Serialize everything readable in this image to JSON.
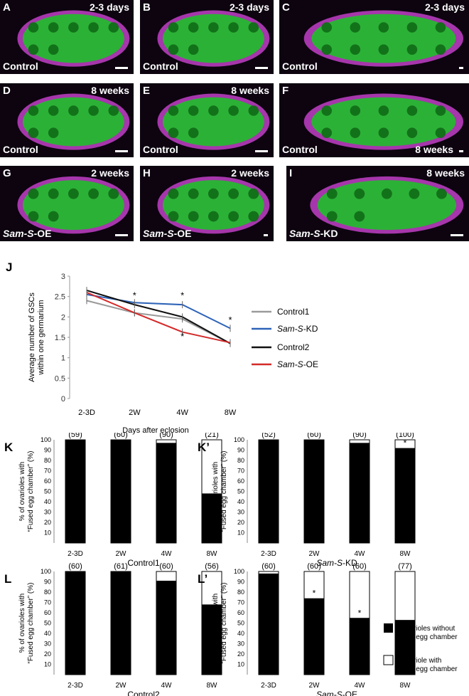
{
  "panels": [
    {
      "id": "A",
      "time": "2-3 days",
      "cond": "Control",
      "cond_italic": ""
    },
    {
      "id": "B",
      "time": "2-3 days",
      "cond": "Control",
      "cond_italic": ""
    },
    {
      "id": "C",
      "time": "2-3 days",
      "cond": "Control",
      "cond_italic": ""
    },
    {
      "id": "D",
      "time": "8 weeks",
      "cond": "Control",
      "cond_italic": ""
    },
    {
      "id": "E",
      "time": "8 weeks",
      "cond": "Control",
      "cond_italic": ""
    },
    {
      "id": "F",
      "time": "8 weeks",
      "cond": "Control",
      "cond_italic": ""
    },
    {
      "id": "G",
      "time": "2 weeks",
      "cond": "-OE",
      "cond_italic": "Sam-S"
    },
    {
      "id": "H",
      "time": "2 weeks",
      "cond": "-OE",
      "cond_italic": "Sam-S"
    },
    {
      "id": "I",
      "time": "8 weeks",
      "cond": "-KD",
      "cond_italic": "Sam-S"
    }
  ],
  "colors": {
    "gfp": "#1fbf2a",
    "membrane": "#c23fc7",
    "control1": "#9a9a9a",
    "samkd": "#2d63b8",
    "control2": "#111111",
    "samoe": "#d42a2a"
  },
  "chart_data": [
    {
      "panel": "J",
      "type": "line",
      "x": [
        "2-3D",
        "2W",
        "4W",
        "8W"
      ],
      "xlabel": "Days after eclosion",
      "ylabel": "Average number of GSCs within one germarium",
      "ylim": [
        0,
        3
      ],
      "yticks": [
        "0",
        "0.5",
        "1",
        "1.5",
        "2",
        "2.5",
        "3"
      ],
      "series": [
        {
          "name": "Control1",
          "values": [
            2.4,
            2.1,
            1.95,
            1.35
          ]
        },
        {
          "name": "Sam-S-KD",
          "values": [
            2.55,
            2.35,
            2.3,
            1.72
          ]
        },
        {
          "name": "Control2",
          "values": [
            2.65,
            2.3,
            2.0,
            1.35
          ]
        },
        {
          "name": "Sam-S-OE",
          "values": [
            2.6,
            2.1,
            1.63,
            1.37
          ]
        }
      ],
      "annotations": [
        "*",
        "*",
        "*",
        "*"
      ]
    },
    {
      "panel": "K",
      "type": "bar",
      "categories": [
        "2-3D",
        "2W",
        "4W",
        "8W"
      ],
      "counts": [
        "(59)",
        "(60)",
        "(90)",
        "(21)"
      ],
      "without": [
        100,
        100,
        97,
        48
      ],
      "title": "Control1",
      "ylim": [
        0,
        100
      ],
      "ylabel": "% of ovarioles with \"Fused egg chamber\" (%)",
      "stars": []
    },
    {
      "panel": "K’",
      "type": "bar",
      "categories": [
        "2-3D",
        "2W",
        "4W",
        "8W"
      ],
      "counts": [
        "(52)",
        "(60)",
        "(90)",
        "(100)"
      ],
      "without": [
        100,
        100,
        97,
        92
      ],
      "title": "Sam-S-KD",
      "ylim": [
        0,
        100
      ],
      "ylabel": "% of ovarioles with \"Fused egg chamber\" (%)",
      "stars": [
        "8W"
      ]
    },
    {
      "panel": "L",
      "type": "bar",
      "categories": [
        "2-3D",
        "2W",
        "4W",
        "8W"
      ],
      "counts": [
        "(60)",
        "(61)",
        "(60)",
        "(56)"
      ],
      "without": [
        100,
        100,
        91,
        68
      ],
      "title": "Control2",
      "ylim": [
        0,
        100
      ],
      "ylabel": "% of ovarioles with \"Fused egg chamber\" (%)",
      "stars": []
    },
    {
      "panel": "L’",
      "type": "bar",
      "categories": [
        "2-3D",
        "2W",
        "4W",
        "8W"
      ],
      "counts": [
        "(60)",
        "(60)",
        "(60)",
        "(77)"
      ],
      "without": [
        98,
        74,
        55,
        53
      ],
      "title": "Sam-S-OE",
      "ylim": [
        0,
        100
      ],
      "ylabel": "% of ovarioles with \"Fused egg chamber\" (%)",
      "stars": [
        "2W",
        "4W"
      ]
    }
  ],
  "legend_lines": [
    "Control1",
    "-KD",
    "Control2",
    "-OE"
  ],
  "legend_bars": {
    "black": ": Ovarioles without fused egg chamber",
    "white": ": Ovariole with fused egg chamber"
  },
  "yticks_bar": [
    "10",
    "20",
    "30",
    "40",
    "50",
    "60",
    "70",
    "80",
    "90",
    "100"
  ]
}
